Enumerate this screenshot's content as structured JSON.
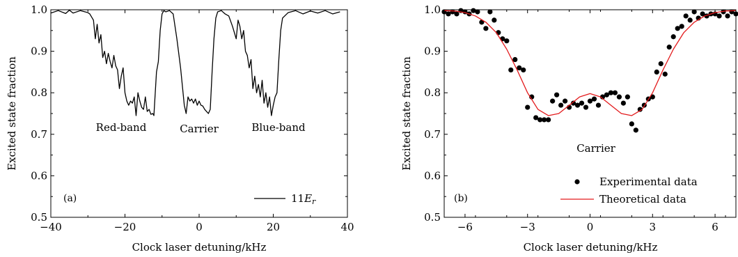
{
  "chart_data": [
    {
      "type": "line",
      "panel_label": "(a)",
      "xlabel": "Clock laser detuning/kHz",
      "ylabel": "Excited state fraction",
      "xlim": [
        -40,
        40
      ],
      "ylim": [
        0.5,
        1.0
      ],
      "xticks": [
        -40,
        -20,
        0,
        20,
        40
      ],
      "xtick_labels": [
        "−40",
        "−20",
        "0",
        "20",
        "40"
      ],
      "yticks": [
        0.5,
        0.6,
        0.7,
        0.8,
        0.9,
        1.0
      ],
      "ytick_labels": [
        "0.5",
        "0.6",
        "0.7",
        "0.8",
        "0.9",
        "1.0"
      ],
      "grid": false,
      "legend_position": "bottom-right",
      "series": [
        {
          "name": "11E_r",
          "legend_main": "11",
          "legend_italic": "E",
          "legend_sub": "r",
          "color": "#000000",
          "x": [
            -40,
            -38,
            -36,
            -35,
            -34,
            -32,
            -30,
            -29.5,
            -28.5,
            -28,
            -27.5,
            -27,
            -26.5,
            -26,
            -25.5,
            -25,
            -24.5,
            -24,
            -23.5,
            -23,
            -22.5,
            -22,
            -21.5,
            -21,
            -20.5,
            -20,
            -19.5,
            -19,
            -18.5,
            -18,
            -17.5,
            -17,
            -16.5,
            -16,
            -15.5,
            -15,
            -14.5,
            -14,
            -13.5,
            -13,
            -12.5,
            -12.2,
            -11.5,
            -11,
            -10.5,
            -10,
            -9.5,
            -9,
            -8,
            -7,
            -6,
            -5,
            -4,
            -3.5,
            -3,
            -2.5,
            -2,
            -1.5,
            -1,
            -0.5,
            0,
            0.5,
            1,
            1.5,
            2,
            2.5,
            3,
            3.5,
            4,
            4.5,
            5,
            6,
            7,
            8,
            9,
            10,
            10.5,
            11,
            11.5,
            12,
            12.5,
            13,
            13.5,
            14,
            14.5,
            15,
            15.5,
            16,
            16.5,
            17,
            17.5,
            18,
            18.5,
            19,
            19.5,
            20,
            20.5,
            21,
            21.5,
            22,
            22.5,
            24,
            26,
            28,
            30,
            32,
            34,
            36,
            38
          ],
          "y": [
            0.992,
            0.998,
            0.991,
            0.999,
            0.992,
            0.998,
            0.993,
            0.99,
            0.975,
            0.93,
            0.965,
            0.92,
            0.94,
            0.885,
            0.9,
            0.87,
            0.895,
            0.875,
            0.86,
            0.89,
            0.865,
            0.855,
            0.81,
            0.84,
            0.86,
            0.8,
            0.78,
            0.77,
            0.78,
            0.775,
            0.79,
            0.745,
            0.8,
            0.78,
            0.765,
            0.76,
            0.79,
            0.755,
            0.76,
            0.748,
            0.75,
            0.745,
            0.85,
            0.875,
            0.95,
            0.99,
            0.998,
            0.995,
            0.998,
            0.99,
            0.93,
            0.86,
            0.77,
            0.75,
            0.79,
            0.78,
            0.785,
            0.775,
            0.785,
            0.77,
            0.78,
            0.77,
            0.768,
            0.76,
            0.755,
            0.75,
            0.76,
            0.85,
            0.93,
            0.98,
            0.995,
            0.998,
            0.99,
            0.985,
            0.96,
            0.93,
            0.975,
            0.96,
            0.93,
            0.95,
            0.9,
            0.89,
            0.86,
            0.88,
            0.81,
            0.84,
            0.8,
            0.82,
            0.79,
            0.83,
            0.775,
            0.8,
            0.765,
            0.79,
            0.745,
            0.77,
            0.79,
            0.8,
            0.88,
            0.95,
            0.98,
            0.993,
            0.998,
            0.99,
            0.997,
            0.992,
            0.998,
            0.99,
            0.995
          ]
        }
      ],
      "annotations": [
        {
          "text": "Red-band",
          "x": -21,
          "y": 0.73
        },
        {
          "text": "Carrier",
          "x": 0,
          "y": 0.728
        },
        {
          "text": "Blue-band",
          "x": 20,
          "y": 0.73
        }
      ]
    },
    {
      "type": "scatter",
      "panel_label": "(b)",
      "xlabel": "Clock laser detuning/kHz",
      "ylabel": "Excited state fraction",
      "xlim": [
        -7,
        7
      ],
      "ylim": [
        0.5,
        1.0
      ],
      "xticks": [
        -6,
        -3,
        0,
        3,
        6
      ],
      "xtick_labels": [
        "−6",
        "−3",
        "0",
        "3",
        "6"
      ],
      "yticks": [
        0.5,
        0.6,
        0.7,
        0.8,
        0.9,
        1.0
      ],
      "ytick_labels": [
        "0.5",
        "0.6",
        "0.7",
        "0.8",
        "0.9",
        "1.0"
      ],
      "grid": false,
      "legend_position": "bottom-right",
      "series": [
        {
          "name": "Experimental data",
          "color": "#000000",
          "x": [
            -7,
            -6.8,
            -6.6,
            -6.4,
            -6.2,
            -6,
            -5.8,
            -5.6,
            -5.4,
            -5.2,
            -5,
            -4.8,
            -4.6,
            -4.4,
            -4.2,
            -4,
            -3.8,
            -3.6,
            -3.4,
            -3.2,
            -3,
            -2.8,
            -2.6,
            -2.4,
            -2.2,
            -2,
            -1.8,
            -1.6,
            -1.4,
            -1.2,
            -1,
            -0.8,
            -0.6,
            -0.4,
            -0.2,
            0,
            0.2,
            0.4,
            0.6,
            0.8,
            1,
            1.2,
            1.4,
            1.6,
            1.8,
            2,
            2.2,
            2.4,
            2.6,
            2.8,
            3,
            3.2,
            3.4,
            3.6,
            3.8,
            4,
            4.2,
            4.4,
            4.6,
            4.8,
            5,
            5.2,
            5.4,
            5.6,
            5.8,
            6,
            6.2,
            6.4,
            6.6,
            6.8,
            7
          ],
          "y": [
            0.995,
            0.99,
            0.995,
            0.99,
            0.998,
            0.995,
            0.99,
            0.998,
            0.995,
            0.97,
            0.955,
            0.995,
            0.975,
            0.945,
            0.93,
            0.925,
            0.855,
            0.88,
            0.86,
            0.855,
            0.765,
            0.79,
            0.74,
            0.735,
            0.735,
            0.735,
            0.78,
            0.795,
            0.77,
            0.78,
            0.765,
            0.775,
            0.77,
            0.775,
            0.765,
            0.78,
            0.785,
            0.77,
            0.79,
            0.795,
            0.8,
            0.8,
            0.79,
            0.775,
            0.79,
            0.725,
            0.71,
            0.76,
            0.77,
            0.785,
            0.79,
            0.85,
            0.87,
            0.845,
            0.91,
            0.935,
            0.955,
            0.96,
            0.985,
            0.975,
            0.995,
            0.98,
            0.99,
            0.985,
            0.99,
            0.99,
            0.985,
            0.995,
            0.985,
            0.995,
            0.99
          ]
        },
        {
          "name": "Theoretical data",
          "color": "#e31a1c",
          "x": [
            -7,
            -6.5,
            -6,
            -5.5,
            -5,
            -4.5,
            -4,
            -3.5,
            -3,
            -2.5,
            -2,
            -1.5,
            -1,
            -0.5,
            0,
            0.5,
            1,
            1.5,
            2,
            2.5,
            3,
            3.5,
            4,
            4.5,
            5,
            5.5,
            6,
            6.5,
            7
          ],
          "y": [
            0.998,
            0.997,
            0.993,
            0.985,
            0.97,
            0.945,
            0.905,
            0.855,
            0.8,
            0.76,
            0.745,
            0.75,
            0.77,
            0.79,
            0.798,
            0.79,
            0.77,
            0.75,
            0.745,
            0.76,
            0.8,
            0.855,
            0.905,
            0.945,
            0.97,
            0.985,
            0.993,
            0.997,
            0.998
          ]
        }
      ],
      "annotations": [
        {
          "text": "Carrier",
          "x": 0.5,
          "y": 0.675
        }
      ]
    }
  ]
}
